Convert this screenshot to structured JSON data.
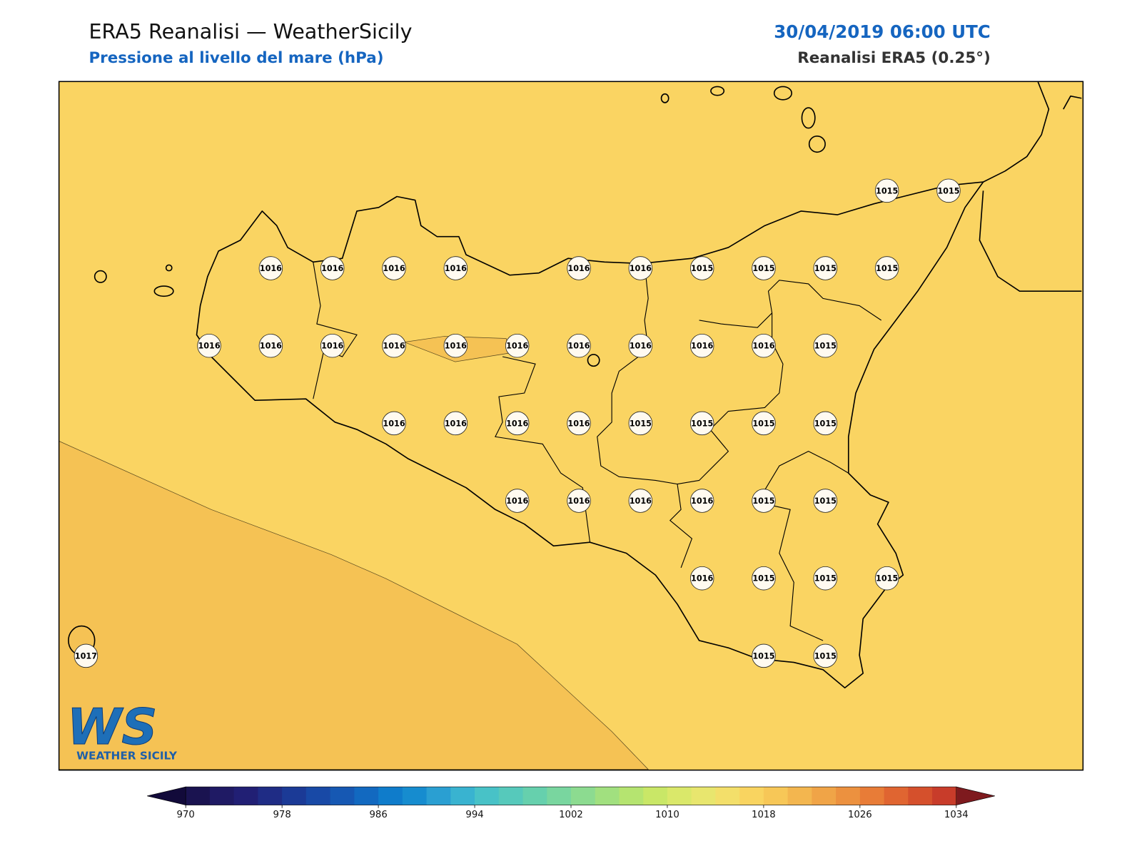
{
  "header": {
    "title": "ERA5 Reanalisi — WeatherSicily",
    "subtitle": "Pressione al livello del mare (hPa)",
    "date": "30/04/2019 06:00 UTC",
    "source": "Reanalisi ERA5 (0.25°)"
  },
  "stations": [
    1015,
    1015,
    1016,
    1016,
    1016,
    1016,
    1016,
    1016,
    1015,
    1015,
    1015,
    1015,
    1016,
    1016,
    1016,
    1016,
    1016,
    1016,
    1016,
    1016,
    1016,
    1016,
    1015,
    1016,
    1016,
    1016,
    1016,
    1015,
    1015,
    1015,
    1015,
    1016,
    1016,
    1016,
    1016,
    1015,
    1015,
    1016,
    1015,
    1015,
    1015,
    1017,
    1015,
    1015
  ],
  "colorbar": {
    "ticks": [
      970,
      978,
      986,
      994,
      1002,
      1010,
      1018,
      1026,
      1034
    ],
    "colors": [
      "#1a1350",
      "#1f1a64",
      "#211f74",
      "#1f2c85",
      "#1b3a96",
      "#1849a6",
      "#1658b3",
      "#1269c0",
      "#0f7ccb",
      "#168ccf",
      "#2a9fd2",
      "#39b3d0",
      "#48c2c7",
      "#56c9bb",
      "#66d0ad",
      "#79d69f",
      "#8cdb90",
      "#a1e07f",
      "#b5e470",
      "#c9e767",
      "#dae86a",
      "#e8e66e",
      "#f3df6a",
      "#f9d460",
      "#f7c757",
      "#f3b64f",
      "#f0a447",
      "#ec913f",
      "#e87c37",
      "#e06531",
      "#d5502c",
      "#c83c2a"
    ],
    "under": "#120a3a",
    "over": "#7e1a1e"
  },
  "logo": {
    "mark": "WS",
    "text": "WEATHER SICILY"
  }
}
